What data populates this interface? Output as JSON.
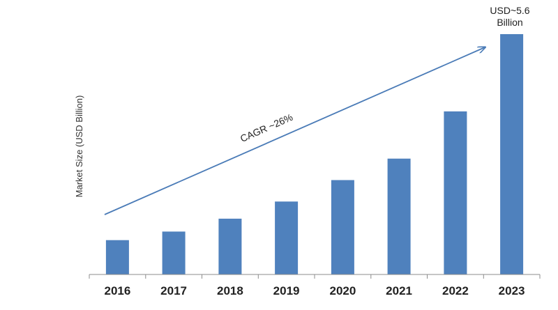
{
  "chart_data": {
    "type": "bar",
    "categories": [
      "2016",
      "2017",
      "2018",
      "2019",
      "2020",
      "2021",
      "2022",
      "2023"
    ],
    "values": [
      0.8,
      1.0,
      1.3,
      1.7,
      2.2,
      2.7,
      3.8,
      5.6
    ],
    "xlabel": "",
    "ylabel": "Market Size (USD Billion)",
    "ylim": [
      0,
      5.6
    ],
    "grid": false,
    "bar_color": "#4f81bd",
    "annotations": {
      "end_value_line1": "USD~5.6",
      "end_value_line2": "Billion",
      "trend_label": "CAGR ~26%"
    }
  }
}
